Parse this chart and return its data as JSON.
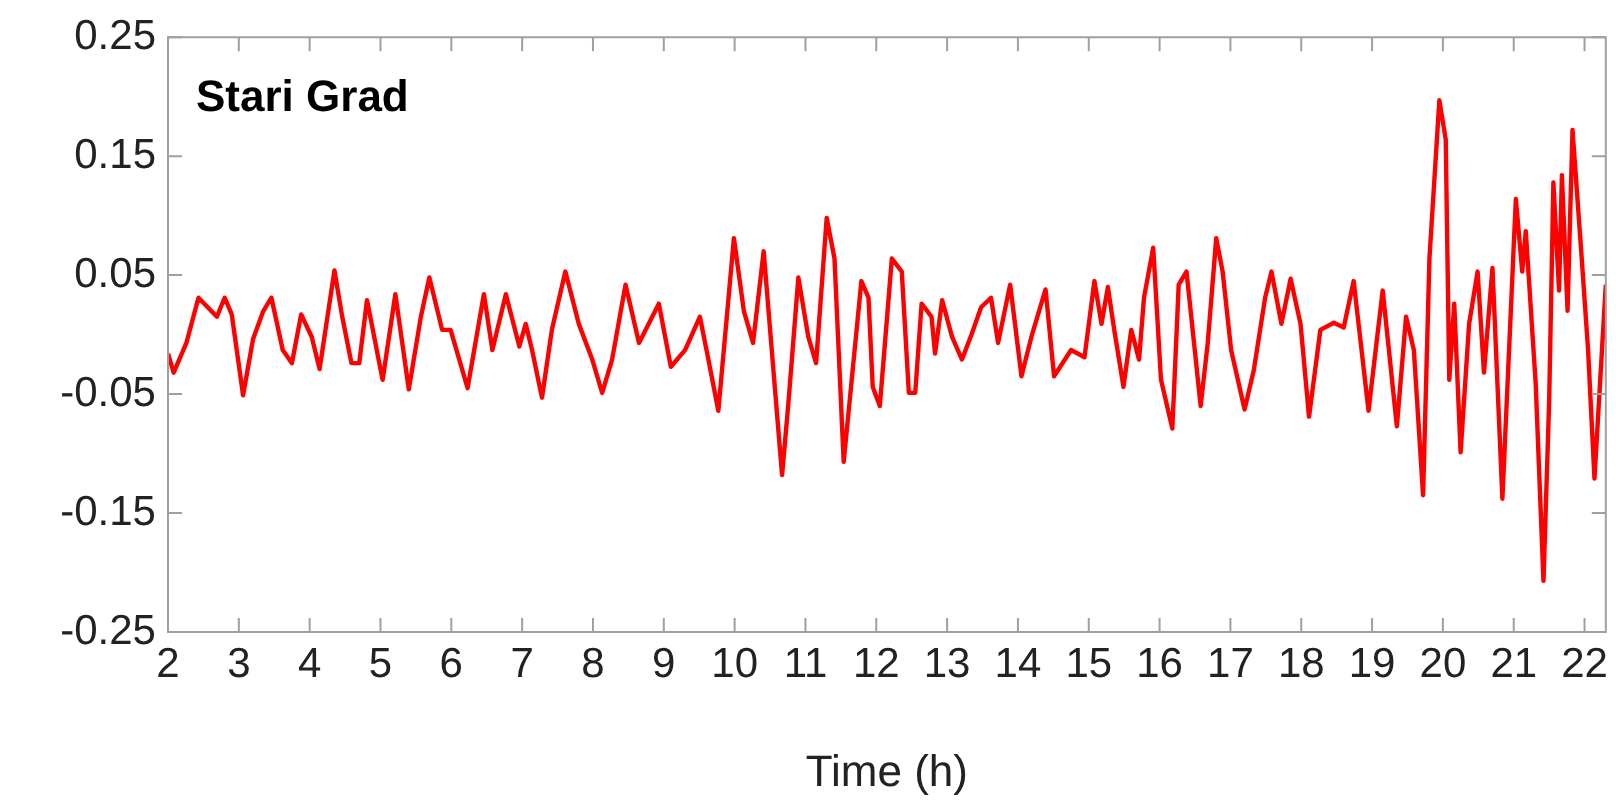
{
  "chart_data": {
    "type": "line",
    "title": "Stari Grad",
    "xlabel": "Time (h)",
    "xlim": [
      2,
      22.3
    ],
    "xticks": [
      2,
      3,
      4,
      5,
      6,
      7,
      8,
      9,
      10,
      11,
      12,
      13,
      14,
      15,
      16,
      17,
      18,
      19,
      20,
      21,
      22
    ],
    "ylim": [
      -0.25,
      0.25
    ],
    "yticks": [
      -0.25,
      -0.15,
      -0.05,
      0.05,
      0.15,
      0.25
    ],
    "grid": false,
    "legend": false,
    "marker": "none",
    "line_style": "solid",
    "series": [
      {
        "color": "#ff0000",
        "x": [
          2.0,
          2.08,
          2.26,
          2.43,
          2.69,
          2.8,
          2.9,
          3.06,
          3.2,
          3.34,
          3.46,
          3.62,
          3.75,
          3.88,
          4.03,
          4.14,
          4.35,
          4.46,
          4.59,
          4.7,
          4.81,
          5.03,
          5.21,
          5.4,
          5.57,
          5.69,
          5.87,
          5.99,
          6.23,
          6.46,
          6.58,
          6.77,
          6.96,
          7.05,
          7.14,
          7.28,
          7.42,
          7.61,
          7.8,
          7.99,
          8.13,
          8.27,
          8.46,
          8.65,
          8.93,
          9.1,
          9.3,
          9.51,
          9.63,
          9.77,
          9.99,
          10.13,
          10.26,
          10.41,
          10.57,
          10.67,
          10.76,
          10.9,
          11.04,
          11.15,
          11.3,
          11.41,
          11.54,
          11.79,
          11.89,
          11.95,
          12.05,
          12.22,
          12.36,
          12.46,
          12.55,
          12.64,
          12.78,
          12.83,
          12.93,
          13.07,
          13.21,
          13.35,
          13.48,
          13.62,
          13.72,
          13.89,
          14.05,
          14.19,
          14.39,
          14.51,
          14.75,
          14.94,
          15.08,
          15.18,
          15.27,
          15.36,
          15.49,
          15.6,
          15.71,
          15.78,
          15.91,
          16.02,
          16.18,
          16.27,
          16.38,
          16.58,
          16.68,
          16.8,
          16.89,
          17.01,
          17.2,
          17.33,
          17.49,
          17.58,
          17.72,
          17.85,
          17.99,
          18.11,
          18.27,
          18.46,
          18.6,
          18.74,
          18.95,
          19.15,
          19.35,
          19.48,
          19.59,
          19.72,
          19.81,
          19.95,
          20.04,
          20.09,
          20.16,
          20.25,
          20.37,
          20.49,
          20.58,
          20.7,
          20.84,
          21.03,
          21.12,
          21.17,
          21.31,
          21.42,
          21.5,
          21.56,
          21.64,
          21.68,
          21.76,
          21.83,
          21.94,
          22.05,
          22.14,
          22.3
        ],
        "values": [
          -0.016,
          -0.032,
          -0.007,
          0.031,
          0.015,
          0.031,
          0.017,
          -0.051,
          -0.004,
          0.019,
          0.031,
          -0.013,
          -0.024,
          0.017,
          -0.002,
          -0.029,
          0.054,
          0.015,
          -0.024,
          -0.024,
          0.029,
          -0.038,
          0.034,
          -0.046,
          0.015,
          0.048,
          0.004,
          0.004,
          -0.045,
          0.034,
          -0.013,
          0.034,
          -0.01,
          0.009,
          -0.013,
          -0.053,
          0.004,
          0.053,
          0.009,
          -0.021,
          -0.049,
          -0.021,
          0.042,
          -0.007,
          0.026,
          -0.027,
          -0.013,
          0.015,
          -0.021,
          -0.064,
          0.081,
          0.02,
          -0.007,
          0.07,
          -0.046,
          -0.118,
          -0.057,
          0.048,
          -0.002,
          -0.024,
          0.098,
          0.064,
          -0.107,
          0.045,
          0.031,
          -0.044,
          -0.06,
          0.064,
          0.053,
          -0.049,
          -0.049,
          0.026,
          0.015,
          -0.016,
          0.029,
          -0.002,
          -0.021,
          0.001,
          0.023,
          0.031,
          -0.007,
          0.042,
          -0.035,
          -0.002,
          0.038,
          -0.035,
          -0.013,
          -0.019,
          0.045,
          0.009,
          0.04,
          0.004,
          -0.044,
          0.004,
          -0.021,
          0.031,
          0.073,
          -0.038,
          -0.079,
          0.042,
          0.053,
          -0.06,
          -0.007,
          0.081,
          0.053,
          -0.013,
          -0.063,
          -0.03,
          0.031,
          0.053,
          0.009,
          0.047,
          0.009,
          -0.069,
          0.004,
          0.01,
          0.006,
          0.045,
          -0.064,
          0.037,
          -0.077,
          0.015,
          -0.013,
          -0.135,
          0.064,
          0.197,
          0.164,
          -0.038,
          0.026,
          -0.099,
          0.009,
          0.053,
          -0.032,
          0.056,
          -0.138,
          0.114,
          0.053,
          0.087,
          -0.041,
          -0.207,
          -0.057,
          0.128,
          0.037,
          0.134,
          0.02,
          0.172,
          0.081,
          -0.013,
          -0.121,
          0.042
        ]
      }
    ]
  }
}
